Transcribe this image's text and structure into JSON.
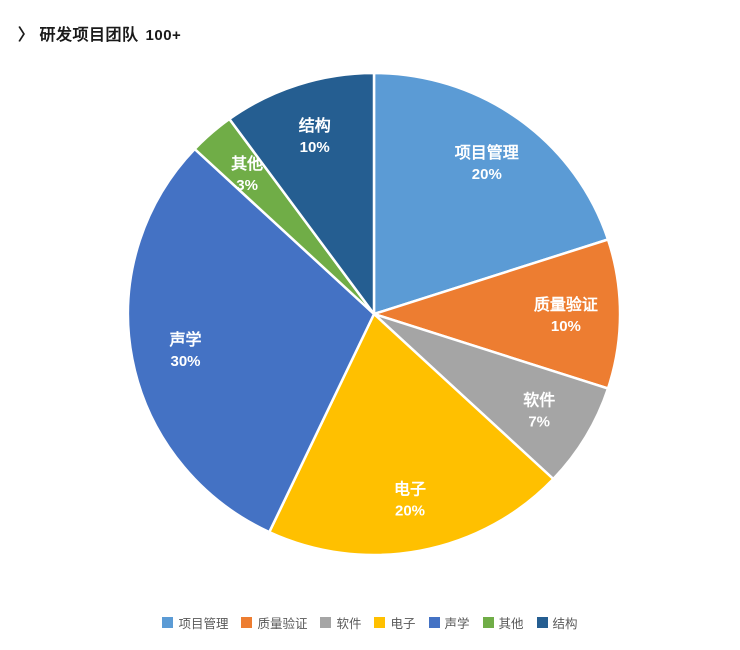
{
  "header": {
    "bracket": "〉",
    "title": "研发项目团队",
    "count": "100+"
  },
  "chart_data": {
    "type": "pie",
    "title": "研发项目团队 100+",
    "start_angle_deg": 0,
    "direction": "clockwise",
    "unit": "%",
    "categories": [
      "项目管理",
      "质量验证",
      "软件",
      "电子",
      "声学",
      "其他",
      "结构"
    ],
    "values": [
      20,
      10,
      7,
      20,
      30,
      3,
      10
    ],
    "value_labels": [
      "20%",
      "10%",
      "7%",
      "20%",
      "30%",
      "3%",
      "10%"
    ],
    "colors": [
      "#5B9BD5",
      "#ED7D31",
      "#A5A5A5",
      "#FFC000",
      "#4472C4",
      "#70AD47",
      "#255E91"
    ],
    "slice_border_color": "#FFFFFF",
    "data_label_color": "#FFFFFF",
    "legend": {
      "position": "bottom",
      "entries": [
        "项目管理",
        "质量验证",
        "软件",
        "电子",
        "声学",
        "其他",
        "结构"
      ],
      "text_color": "#595959"
    }
  }
}
